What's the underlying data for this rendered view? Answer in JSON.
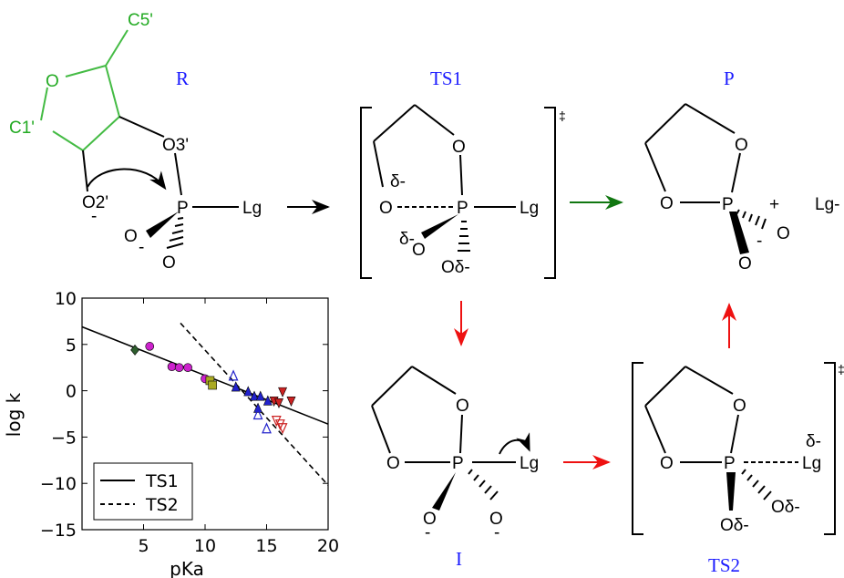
{
  "stages": {
    "R": "R",
    "TS1": "TS1",
    "P": "P",
    "I": "I",
    "TS2": "TS2"
  },
  "atoms": {
    "c5": "C5'",
    "c1": "C1'",
    "o_ring": "O",
    "o3": "O3'",
    "o2": "O2'",
    "minus": "-",
    "p": "P",
    "lg": "Lg",
    "o": "O",
    "delta_minus": "δ-",
    "o_delta": "Oδ-",
    "plus": "+",
    "lg_minus": "Lg-",
    "dagger": "‡"
  },
  "colors": {
    "stage_label": "#1a1aff",
    "sugar": "#44bb44",
    "arrow_green": "#117711",
    "arrow_red": "#ee1111",
    "arrow_black": "#000000"
  },
  "chart_data": {
    "type": "scatter",
    "xlabel": "pKa",
    "ylabel": "log k",
    "xlim": [
      0,
      20
    ],
    "ylim": [
      -15,
      10
    ],
    "xticks": [
      "5",
      "10",
      "15",
      "20"
    ],
    "yticks": [
      "10",
      "5",
      "0",
      "−5",
      "−10",
      "−15"
    ],
    "legend": {
      "position": "bottom-left",
      "entries": [
        "TS1",
        "TS2"
      ]
    },
    "lines": [
      {
        "name": "TS1",
        "style": "solid",
        "x": [
          0,
          20
        ],
        "y": [
          6.9,
          -3.6
        ]
      },
      {
        "name": "TS2",
        "style": "dashed",
        "x": [
          8,
          20
        ],
        "y": [
          7.3,
          -10.2
        ]
      }
    ],
    "points": [
      {
        "marker": "diamond",
        "color": "#2e5e2e",
        "filled": true,
        "x": 4.3,
        "y": 4.4
      },
      {
        "marker": "circle",
        "color": "#cc22cc",
        "filled": true,
        "x": 5.5,
        "y": 4.8
      },
      {
        "marker": "circle",
        "color": "#cc22cc",
        "filled": true,
        "x": 7.3,
        "y": 2.6
      },
      {
        "marker": "circle",
        "color": "#cc22cc",
        "filled": true,
        "x": 7.9,
        "y": 2.5
      },
      {
        "marker": "circle",
        "color": "#cc22cc",
        "filled": true,
        "x": 8.6,
        "y": 2.5
      },
      {
        "marker": "circle",
        "color": "#cc22cc",
        "filled": true,
        "x": 10.0,
        "y": 1.3
      },
      {
        "marker": "square",
        "color": "#aaaa22",
        "filled": true,
        "x": 10.4,
        "y": 1.1
      },
      {
        "marker": "square",
        "color": "#aaaa22",
        "filled": true,
        "x": 10.6,
        "y": 0.6
      },
      {
        "marker": "triangle-up",
        "color": "#2222cc",
        "filled": false,
        "x": 12.3,
        "y": 1.6
      },
      {
        "marker": "triangle-up",
        "color": "#2222cc",
        "filled": true,
        "x": 12.5,
        "y": 0.4
      },
      {
        "marker": "triangle-up",
        "color": "#2222cc",
        "filled": true,
        "x": 13.5,
        "y": -0.1
      },
      {
        "marker": "triangle-up",
        "color": "#2222cc",
        "filled": true,
        "x": 14.0,
        "y": -0.6
      },
      {
        "marker": "triangle-up",
        "color": "#2222cc",
        "filled": true,
        "x": 14.3,
        "y": -1.9
      },
      {
        "marker": "triangle-up",
        "color": "#2222cc",
        "filled": true,
        "x": 14.5,
        "y": -0.6
      },
      {
        "marker": "triangle-up",
        "color": "#2222cc",
        "filled": true,
        "x": 15.1,
        "y": -1.1
      },
      {
        "marker": "triangle-up",
        "color": "#2222cc",
        "filled": false,
        "x": 14.3,
        "y": -2.6
      },
      {
        "marker": "triangle-up",
        "color": "#2222cc",
        "filled": false,
        "x": 15.0,
        "y": -4.1
      },
      {
        "marker": "triangle-down",
        "color": "#cc2222",
        "filled": true,
        "x": 15.6,
        "y": -1.1
      },
      {
        "marker": "triangle-down",
        "color": "#cc2222",
        "filled": true,
        "x": 16.0,
        "y": -1.3
      },
      {
        "marker": "triangle-down",
        "color": "#cc2222",
        "filled": true,
        "x": 16.3,
        "y": -0.1
      },
      {
        "marker": "triangle-down",
        "color": "#cc2222",
        "filled": true,
        "x": 17.0,
        "y": -1.1
      },
      {
        "marker": "triangle-down",
        "color": "#cc2222",
        "filled": false,
        "x": 15.8,
        "y": -3.2
      },
      {
        "marker": "triangle-down",
        "color": "#cc2222",
        "filled": false,
        "x": 16.1,
        "y": -3.6
      },
      {
        "marker": "triangle-down",
        "color": "#cc2222",
        "filled": false,
        "x": 16.3,
        "y": -4.0
      }
    ]
  }
}
